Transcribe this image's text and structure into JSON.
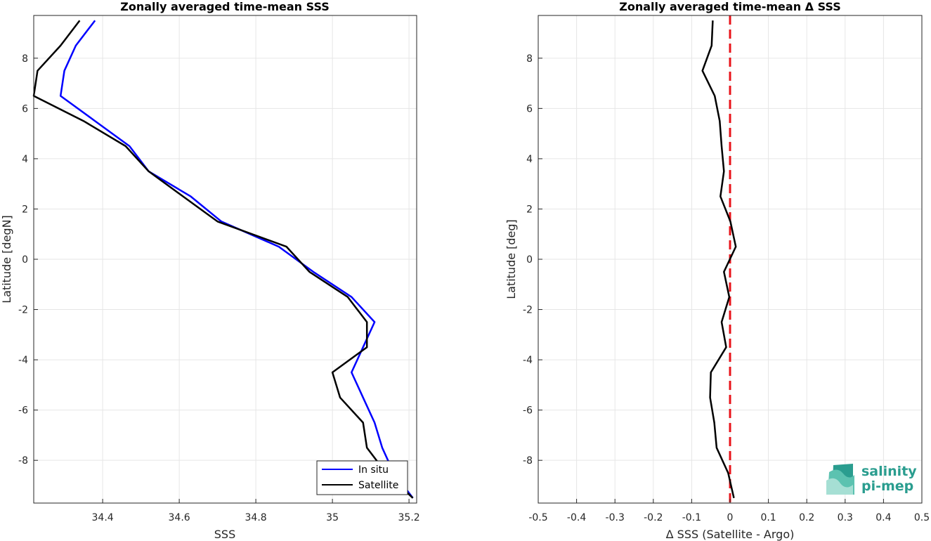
{
  "chart_data": [
    {
      "type": "line",
      "title": "Zonally averaged time-mean SSS",
      "xlabel": "SSS",
      "ylabel": "Latitude [degN]",
      "xlim": [
        34.22,
        35.22
      ],
      "ylim": [
        -9.7,
        9.7
      ],
      "x_ticks": [
        "34.4",
        "34.6",
        "34.8",
        "35",
        "35.2"
      ],
      "x_tick_values": [
        34.4,
        34.6,
        34.8,
        35.0,
        35.2
      ],
      "y_ticks": [
        "8",
        "6",
        "4",
        "2",
        "0",
        "-2",
        "-4",
        "-6",
        "-8"
      ],
      "y_tick_values": [
        8,
        6,
        4,
        2,
        0,
        -2,
        -4,
        -6,
        -8
      ],
      "grid": true,
      "legend_position": "bottom-right",
      "colors": {
        "In situ": "#0000ff",
        "Satellite": "#000000"
      },
      "latitudes": [
        9.5,
        8.5,
        7.5,
        6.5,
        5.5,
        4.5,
        3.5,
        2.5,
        1.5,
        0.5,
        -0.5,
        -1.5,
        -2.5,
        -3.5,
        -4.5,
        -5.5,
        -6.5,
        -7.5,
        -8.5,
        -9.5
      ],
      "series": [
        {
          "name": "In situ",
          "values": [
            34.38,
            34.33,
            34.3,
            34.29,
            34.38,
            34.47,
            34.52,
            34.63,
            34.71,
            34.86,
            34.95,
            35.05,
            35.11,
            35.08,
            35.05,
            35.08,
            35.11,
            35.13,
            35.16,
            35.21
          ]
        },
        {
          "name": "Satellite",
          "values": [
            34.34,
            34.29,
            34.23,
            34.22,
            34.35,
            34.46,
            34.52,
            34.61,
            34.7,
            34.88,
            34.94,
            35.04,
            35.09,
            35.09,
            35.0,
            35.02,
            35.08,
            35.09,
            35.14,
            35.21
          ]
        }
      ]
    },
    {
      "type": "line",
      "title": "Zonally averaged time-mean Δ SSS",
      "xlabel": "Δ SSS (Satellite - Argo)",
      "ylabel": "Latitude [deg]",
      "xlim": [
        -0.5,
        0.5
      ],
      "ylim": [
        -9.7,
        9.7
      ],
      "x_ticks": [
        "-0.5",
        "-0.4",
        "-0.3",
        "-0.2",
        "-0.1",
        "0",
        "0.1",
        "0.2",
        "0.3",
        "0.4",
        "0.5"
      ],
      "x_tick_values": [
        -0.5,
        -0.4,
        -0.3,
        -0.2,
        -0.1,
        0,
        0.1,
        0.2,
        0.3,
        0.4,
        0.5
      ],
      "y_ticks": [
        "8",
        "6",
        "4",
        "2",
        "0",
        "-2",
        "-4",
        "-6",
        "-8"
      ],
      "y_tick_values": [
        8,
        6,
        4,
        2,
        0,
        -2,
        -4,
        -6,
        -8
      ],
      "grid": true,
      "reference_line": {
        "x": 0,
        "color": "#e8141b",
        "style": "dashed"
      },
      "colors": {
        "delta": "#000000"
      },
      "latitudes": [
        9.5,
        8.5,
        7.5,
        6.5,
        5.5,
        4.5,
        3.5,
        2.5,
        1.5,
        0.5,
        -0.5,
        -1.5,
        -2.5,
        -3.5,
        -4.5,
        -5.5,
        -6.5,
        -7.5,
        -8.5,
        -9.5
      ],
      "series": [
        {
          "values": [
            -0.045,
            -0.048,
            -0.072,
            -0.04,
            -0.027,
            -0.022,
            -0.016,
            -0.025,
            0.001,
            0.015,
            -0.016,
            -0.002,
            -0.022,
            -0.01,
            -0.05,
            -0.052,
            -0.041,
            -0.035,
            -0.005,
            0.01
          ]
        }
      ]
    }
  ],
  "logo": {
    "line1": "salinity",
    "line2": "pi-mep",
    "color": "#2a9d8f"
  }
}
